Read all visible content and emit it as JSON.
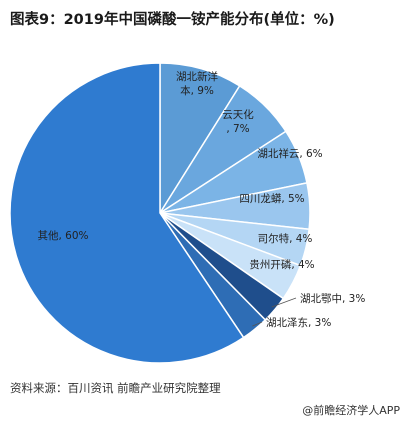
{
  "title": "图表9：2019年中国磷酸一铵产能分布(单位：%)",
  "source": "资料来源：百川资讯 前瞻产业研究院整理",
  "attribution": "@前瞻经济学人APP",
  "chart_data": {
    "type": "pie",
    "title": "图表9：2019年中国磷酸一铵产能分布(单位：%)",
    "unit": "%",
    "slices": [
      {
        "label": "湖北新洋本",
        "value": 9,
        "text": "9%",
        "color": "#5b9bd5"
      },
      {
        "label": "云天化",
        "value": 7,
        "text": "7%",
        "color": "#6aa7de"
      },
      {
        "label": "湖北祥云",
        "value": 6,
        "text": "6%",
        "color": "#7bb4e6"
      },
      {
        "label": "四川龙蟒",
        "value": 5,
        "text": "5%",
        "color": "#9ac6ee"
      },
      {
        "label": "司尔特",
        "value": 4,
        "text": "4%",
        "color": "#b4d6f4"
      },
      {
        "label": "贵州开磷",
        "value": 4,
        "text": "4%",
        "color": "#c9e2f8"
      },
      {
        "label": "湖北鄂中",
        "value": 3,
        "text": "3%",
        "color": "#1f4e8c"
      },
      {
        "label": "湖北泽东",
        "value": 3,
        "text": "3%",
        "color": "#2e6db5"
      },
      {
        "label": "其他",
        "value": 60,
        "text": "60%",
        "color": "#2f7bd0"
      }
    ]
  }
}
